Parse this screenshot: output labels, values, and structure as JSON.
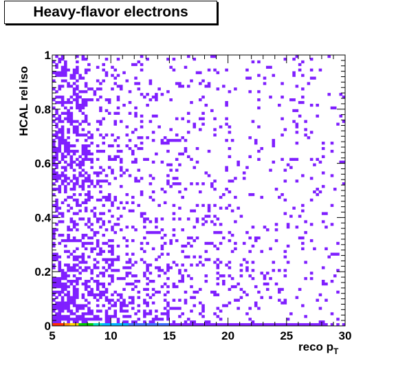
{
  "chart_data": {
    "type": "heatmap",
    "title": "Heavy-flavor electrons",
    "xlabel": "reco p",
    "xlabel_subscript": "T",
    "ylabel": "HCAL rel iso",
    "xlim": [
      5,
      30
    ],
    "ylim": [
      0,
      1
    ],
    "x_ticks": [
      "5",
      "10",
      "15",
      "20",
      "25",
      "30"
    ],
    "x_tick_values": [
      5,
      10,
      15,
      20,
      25,
      30
    ],
    "y_ticks": [
      "0",
      "0.2",
      "0.4",
      "0.6",
      "0.8",
      "1"
    ],
    "y_tick_values": [
      0,
      0.2,
      0.4,
      0.6,
      0.8,
      1
    ],
    "bins": {
      "x": 100,
      "y": 100
    },
    "grid": false,
    "legend": "none",
    "colors": {
      "dominant": "#7f1fff",
      "dense": "#5a1ef0"
    },
    "density_description_values": {
      "dense_region_x": [
        5,
        12
      ],
      "dense_region_y": [
        0.0,
        0.45
      ],
      "zero_iso_row_colors": [
        "#ff2d00",
        "#ff8c00",
        "#ffd400",
        "#00c800",
        "#00e0c0",
        "#00b4ff",
        "#3c6cff",
        "#7f1fff"
      ]
    }
  }
}
